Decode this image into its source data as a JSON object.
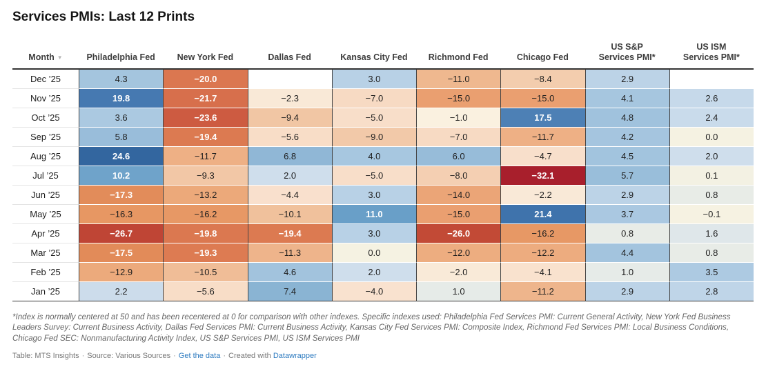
{
  "title": "Services PMIs: Last 12 Prints",
  "table": {
    "month_header": "Month",
    "sort_icon": "▼",
    "columns": [
      [
        "Philadelphia Fed"
      ],
      [
        "New York Fed"
      ],
      [
        "Dallas Fed"
      ],
      [
        "Kansas City Fed"
      ],
      [
        "Richmond Fed"
      ],
      [
        "Chicago Fed"
      ],
      [
        "US S&P",
        "Services PMI*"
      ],
      [
        "US ISM",
        "Services PMI*"
      ]
    ],
    "rows": [
      {
        "month": "Dec ’25",
        "values": [
          4.3,
          -20.0,
          null,
          3.0,
          -11.0,
          -8.4,
          2.9,
          null
        ]
      },
      {
        "month": "Nov ’25",
        "values": [
          19.8,
          -21.7,
          -2.3,
          -7.0,
          -15.0,
          -15.0,
          4.1,
          2.6
        ]
      },
      {
        "month": "Oct ’25",
        "values": [
          3.6,
          -23.6,
          -9.4,
          -5.0,
          -1.0,
          17.5,
          4.8,
          2.4
        ]
      },
      {
        "month": "Sep ’25",
        "values": [
          5.8,
          -19.4,
          -5.6,
          -9.0,
          -7.0,
          -11.7,
          4.2,
          0.0
        ]
      },
      {
        "month": "Aug ’25",
        "values": [
          24.6,
          -11.7,
          6.8,
          4.0,
          6.0,
          -4.7,
          4.5,
          2.0
        ]
      },
      {
        "month": "Jul ’25",
        "values": [
          10.2,
          -9.3,
          2.0,
          -5.0,
          -8.0,
          -32.1,
          5.7,
          0.1
        ]
      },
      {
        "month": "Jun ’25",
        "values": [
          -17.3,
          -13.2,
          -4.4,
          3.0,
          -14.0,
          -2.2,
          2.9,
          0.8
        ]
      },
      {
        "month": "May ’25",
        "values": [
          -16.3,
          -16.2,
          -10.1,
          11.0,
          -15.0,
          21.4,
          3.7,
          -0.1
        ]
      },
      {
        "month": "Apr ’25",
        "values": [
          -26.7,
          -19.8,
          -19.4,
          3.0,
          -26.0,
          -16.2,
          0.8,
          1.6
        ]
      },
      {
        "month": "Mar ’25",
        "values": [
          -17.5,
          -19.3,
          -11.3,
          0.0,
          -12.0,
          -12.2,
          4.4,
          0.8
        ]
      },
      {
        "month": "Feb ’25",
        "values": [
          -12.9,
          -10.5,
          4.6,
          2.0,
          -2.0,
          -4.1,
          1.0,
          3.5
        ]
      },
      {
        "month": "Jan ’25",
        "values": [
          2.2,
          -5.6,
          7.4,
          -4.0,
          1.0,
          -11.2,
          2.9,
          2.8
        ]
      }
    ]
  },
  "heatmap": {
    "empty_color": "#ffffff",
    "text_dark": "#1f1f1f",
    "text_light": "#ffffff",
    "luminance_threshold": 168,
    "stops": [
      [
        -32.1,
        "#a81f2c"
      ],
      [
        -26.0,
        "#c24a36"
      ],
      [
        -23.6,
        "#cd5b41"
      ],
      [
        -21.7,
        "#d76f4c"
      ],
      [
        -19.5,
        "#dc7951"
      ],
      [
        -17.0,
        "#e38f5b"
      ],
      [
        -16.0,
        "#e89a67"
      ],
      [
        -14.5,
        "#eba275"
      ],
      [
        -13.0,
        "#ecaa7b"
      ],
      [
        -12.0,
        "#edad80"
      ],
      [
        -10.3,
        "#f0bf9a"
      ],
      [
        -9.0,
        "#f2c9a9"
      ],
      [
        -8.0,
        "#f4cfb2"
      ],
      [
        -7.0,
        "#f7dac3"
      ],
      [
        -5.0,
        "#f8dec9"
      ],
      [
        -4.0,
        "#f9e2cf"
      ],
      [
        -2.0,
        "#f9ead8"
      ],
      [
        -1.0,
        "#faf1e0"
      ],
      [
        0.0,
        "#f5f2e2"
      ],
      [
        0.8,
        "#e8ece7"
      ],
      [
        1.2,
        "#e3e9e8"
      ],
      [
        1.6,
        "#dfe7ea"
      ],
      [
        2.0,
        "#cfdeec"
      ],
      [
        2.6,
        "#c6d9ea"
      ],
      [
        3.0,
        "#b8d1e6"
      ],
      [
        3.6,
        "#abc9e1"
      ],
      [
        4.4,
        "#a3c4de"
      ],
      [
        5.0,
        "#9fc1dc"
      ],
      [
        6.0,
        "#97bcd9"
      ],
      [
        7.4,
        "#8ab4d3"
      ],
      [
        10.2,
        "#6fa3ca"
      ],
      [
        11.0,
        "#699fc8"
      ],
      [
        17.5,
        "#4d80b5"
      ],
      [
        19.8,
        "#4679b1"
      ],
      [
        21.4,
        "#3f73ac"
      ],
      [
        24.6,
        "#33669f"
      ]
    ]
  },
  "chart_data": {
    "type": "heatmap",
    "title": "Services PMIs: Last 12 Prints",
    "x_categories": [
      "Philadelphia Fed",
      "New York Fed",
      "Dallas Fed",
      "Kansas City Fed",
      "Richmond Fed",
      "Chicago Fed",
      "US S&P Services PMI*",
      "US ISM Services PMI*"
    ],
    "y_categories": [
      "Dec '25",
      "Nov '25",
      "Oct '25",
      "Sep '25",
      "Aug '25",
      "Jul '25",
      "Jun '25",
      "May '25",
      "Apr '25",
      "Mar '25",
      "Feb '25",
      "Jan '25"
    ],
    "values": [
      [
        4.3,
        -20.0,
        null,
        3.0,
        -11.0,
        -8.4,
        2.9,
        null
      ],
      [
        19.8,
        -21.7,
        -2.3,
        -7.0,
        -15.0,
        -15.0,
        4.1,
        2.6
      ],
      [
        3.6,
        -23.6,
        -9.4,
        -5.0,
        -1.0,
        17.5,
        4.8,
        2.4
      ],
      [
        5.8,
        -19.4,
        -5.6,
        -9.0,
        -7.0,
        -11.7,
        4.2,
        0.0
      ],
      [
        24.6,
        -11.7,
        6.8,
        4.0,
        6.0,
        -4.7,
        4.5,
        2.0
      ],
      [
        10.2,
        -9.3,
        2.0,
        -5.0,
        -8.0,
        -32.1,
        5.7,
        0.1
      ],
      [
        -17.3,
        -13.2,
        -4.4,
        3.0,
        -14.0,
        -2.2,
        2.9,
        0.8
      ],
      [
        -16.3,
        -16.2,
        -10.1,
        11.0,
        -15.0,
        21.4,
        3.7,
        -0.1
      ],
      [
        -26.7,
        -19.8,
        -19.4,
        3.0,
        -26.0,
        -16.2,
        0.8,
        1.6
      ],
      [
        -17.5,
        -19.3,
        -11.3,
        0.0,
        -12.0,
        -12.2,
        4.4,
        0.8
      ],
      [
        -12.9,
        -10.5,
        4.6,
        2.0,
        -2.0,
        -4.1,
        1.0,
        3.5
      ],
      [
        2.2,
        -5.6,
        7.4,
        -4.0,
        1.0,
        -11.2,
        2.9,
        2.8
      ]
    ],
    "color_scale": "diverging red-cream-blue, centered at 0",
    "legend": "none",
    "value_range": [
      -32.1,
      24.6
    ]
  },
  "footnote": "*Index is normally centered at 50 and has been recentered at 0 for comparison with other indexes. Specific indexes used: Philadelphia Fed Services PMI: Current General Activity, New York Fed Business Leaders Survey: Current Business Activity, Dallas Fed Services PMI: Current Business Activity, Kansas City Fed Services PMI: Composite Index, Richmond Fed Services PMI: Local Business Conditions, Chicago Fed SEC: Nonmanufacturing Activity Index, US S&P Services PMI, US ISM Services PMI",
  "footer": {
    "table_credit": "Table: MTS Insights",
    "separator": "·",
    "source": "Source: Various Sources",
    "get_data_link": "Get the data",
    "created_with": "Created with",
    "datawrapper_link": "Datawrapper",
    "link_color": "#2e7bc0"
  }
}
